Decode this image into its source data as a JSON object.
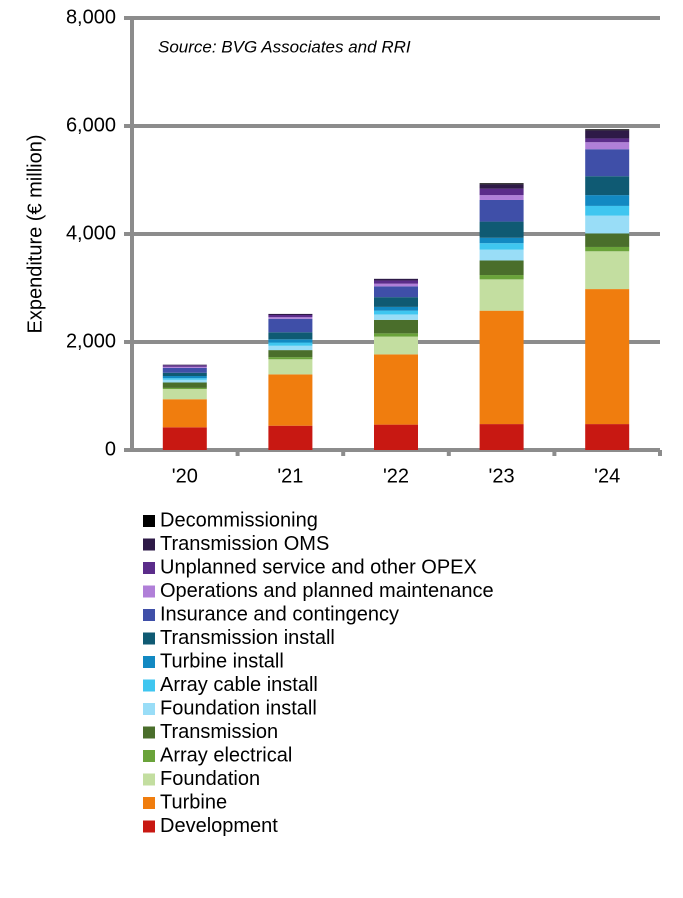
{
  "chart_data": {
    "type": "stacked_bar",
    "annotation": "Source: BVG Associates and RRI",
    "ylabel": "Expenditure  (€ million)",
    "categories": [
      "'20",
      "'21",
      "'22",
      "'23",
      "'24"
    ],
    "ylim": [
      0,
      8000
    ],
    "yticks": [
      0,
      {
        "value": 2000,
        "label": "2,000"
      },
      {
        "value": 4000,
        "label": "4,000"
      },
      {
        "value": 6000,
        "label": "6,000"
      },
      {
        "value": 8000,
        "label": "8,000"
      }
    ],
    "grid": true,
    "series": [
      {
        "name": "Development",
        "color": "#c81812",
        "values": [
          420,
          450,
          470,
          480,
          480
        ]
      },
      {
        "name": "Turbine",
        "color": "#f07d0e",
        "values": [
          520,
          950,
          1300,
          2100,
          2500
        ]
      },
      {
        "name": "Foundation",
        "color": "#c3dea0",
        "values": [
          190,
          280,
          330,
          580,
          700
        ]
      },
      {
        "name": "Array electrical",
        "color": "#6aa33a",
        "values": [
          20,
          40,
          60,
          80,
          80
        ]
      },
      {
        "name": "Transmission",
        "color": "#4a6e2b",
        "values": [
          100,
          130,
          250,
          270,
          250
        ]
      },
      {
        "name": "Foundation install",
        "color": "#99ddf7",
        "values": [
          50,
          80,
          100,
          200,
          330
        ]
      },
      {
        "name": "Array cable install",
        "color": "#3fc6f0",
        "values": [
          30,
          60,
          70,
          120,
          180
        ]
      },
      {
        "name": "Turbine install",
        "color": "#1289c2",
        "values": [
          40,
          60,
          70,
          100,
          200
        ]
      },
      {
        "name": "Transmission install",
        "color": "#0f5a73",
        "values": [
          60,
          130,
          180,
          300,
          350
        ]
      },
      {
        "name": "Insurance and contingency",
        "color": "#3f4fa8",
        "values": [
          90,
          250,
          200,
          400,
          500
        ]
      },
      {
        "name": "Operations and planned maintenance",
        "color": "#b07fd8",
        "values": [
          20,
          30,
          50,
          90,
          130
        ]
      },
      {
        "name": "Unplanned service and other OPEX",
        "color": "#5b2c8a",
        "values": [
          30,
          40,
          60,
          120,
          70
        ]
      },
      {
        "name": "Transmission OMS",
        "color": "#2e1a47",
        "values": [
          10,
          20,
          30,
          80,
          150
        ]
      },
      {
        "name": "Decommissioning",
        "color": "#000000",
        "values": [
          0,
          0,
          0,
          20,
          20
        ]
      }
    ]
  }
}
